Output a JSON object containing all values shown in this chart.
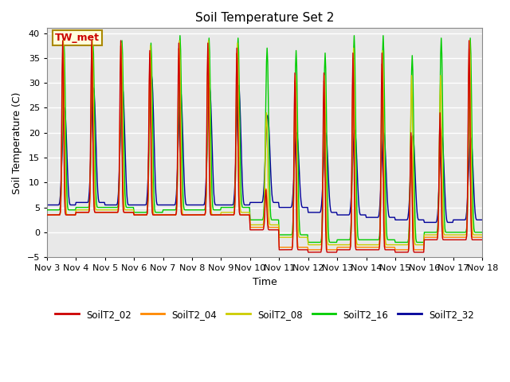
{
  "title": "Soil Temperature Set 2",
  "xlabel": "Time",
  "ylabel": "Soil Temperature (C)",
  "ylim": [
    -5,
    41
  ],
  "yticks": [
    -5,
    0,
    5,
    10,
    15,
    20,
    25,
    30,
    35,
    40
  ],
  "series_labels": [
    "SoilT2_02",
    "SoilT2_04",
    "SoilT2_08",
    "SoilT2_16",
    "SoilT2_32"
  ],
  "series_colors": [
    "#cc0000",
    "#ff8800",
    "#cccc00",
    "#00cc00",
    "#000099"
  ],
  "annotation_text": "TW_met",
  "annotation_color": "#cc0000",
  "annotation_bg": "#ffffdd",
  "annotation_border": "#aa8800",
  "plot_bg": "#e8e8e8",
  "xtick_labels": [
    "Nov 3",
    "Nov 4",
    "Nov 5",
    "Nov 6",
    "Nov 7",
    "Nov 8",
    "Nov 9",
    "Nov 10",
    "Nov 11",
    "Nov 12",
    "Nov 13",
    "Nov 14",
    "Nov 15",
    "Nov 16",
    "Nov 17",
    "Nov 18"
  ]
}
